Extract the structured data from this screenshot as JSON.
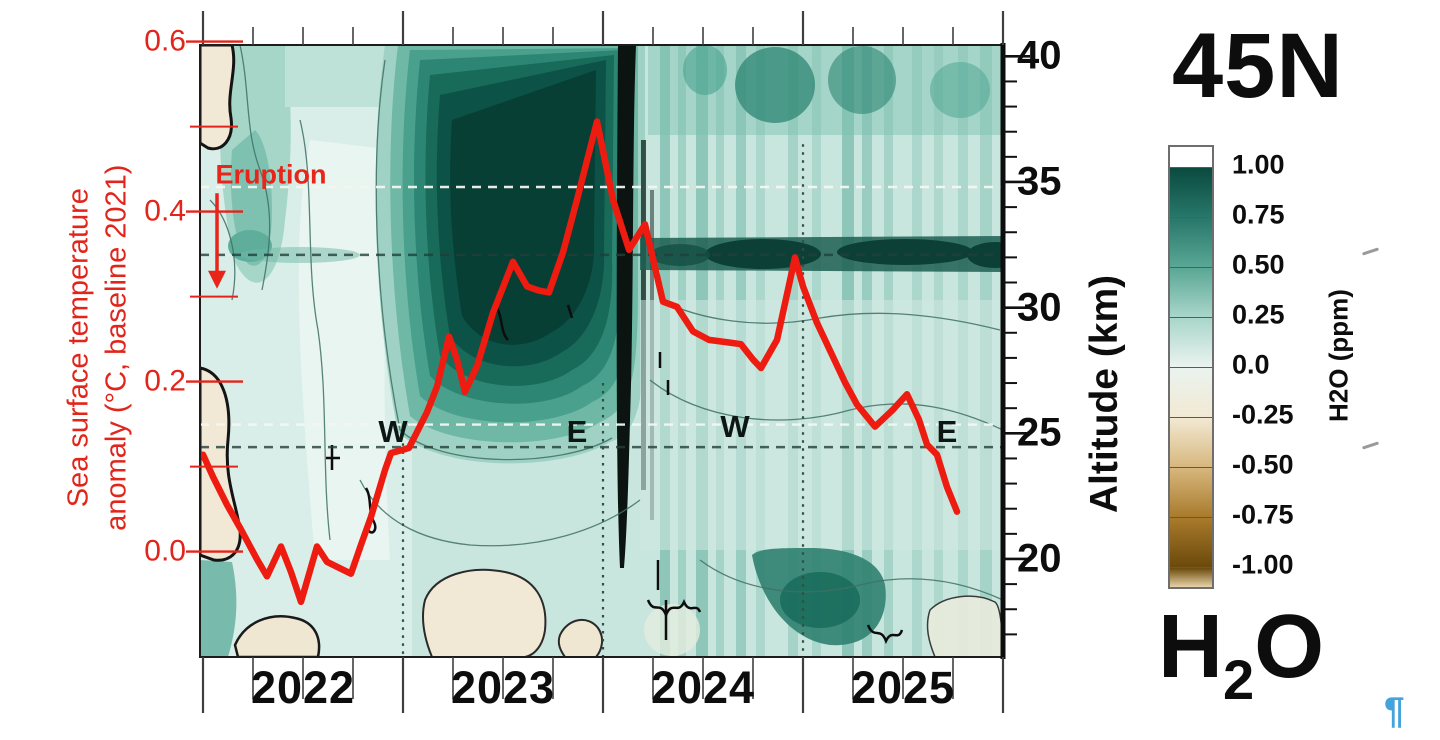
{
  "panel_title": "45N",
  "species_label": {
    "base": "H",
    "subscript": "2",
    "tail": "O"
  },
  "pilcrow": "¶",
  "left_axis": {
    "title_line1": "Sea surface temperature",
    "title_line2": "anomaly (°C, baseline 2021)",
    "tick_labels": [
      "0.6",
      "0.4",
      "0.2",
      "0.0"
    ],
    "color": "#e1251b"
  },
  "right_axis": {
    "title": "Altitude (km)",
    "tick_labels": [
      "40",
      "35",
      "30",
      "25",
      "20"
    ]
  },
  "bottom_axis": {
    "tick_labels": [
      "2022",
      "2023",
      "2024",
      "2025"
    ]
  },
  "colorbar": {
    "title": "H2O (ppm)",
    "tick_labels": [
      "1.00",
      "0.75",
      "0.50",
      "0.25",
      "0.0",
      "-0.25",
      "-0.50",
      "-0.75",
      "-1.00"
    ]
  },
  "chart_data": {
    "type": "heatmap",
    "title": "45N",
    "description": "Contour/heatmap of stratospheric water vapor anomaly (H2O, ppm) at 45N versus time (2022-2025) and altitude (km), teal = positive, brown = negative, with Hunga Tonga eruption marked in early 2022 and QBO wind phase letters W/E. Overlaid red line: global sea surface temperature anomaly (°C, baseline 2021) read on the left axis.",
    "x_range_years": [
      2021.985,
      2026.0
    ],
    "altitude_range_km": [
      16.1,
      40.45
    ],
    "sst_axis_range_c": [
      -0.124,
      0.596
    ],
    "grid": "dashed altitude guides on, dotted year boundaries on",
    "colorbar": {
      "label": "H2O (ppm)",
      "levels": [
        1.0,
        0.75,
        0.5,
        0.25,
        0.0,
        -0.25,
        -0.5,
        -0.75,
        -1.0
      ],
      "colors": [
        "#0b4a3f",
        "#27776a",
        "#5aa795",
        "#a9d6ca",
        "#eaf3ef",
        "#f2e9d3",
        "#d7b77e",
        "#a97b2c",
        "#6b4a0b"
      ],
      "under_color": "#e7d3a8",
      "over_color": "#ffffff"
    },
    "qbo_phase_labels": [
      {
        "t": 2022.95,
        "alt_km": 25.1,
        "label": "W"
      },
      {
        "t": 2023.87,
        "alt_km": 25.1,
        "label": "E"
      },
      {
        "t": 2024.66,
        "alt_km": 25.3,
        "label": "W"
      },
      {
        "t": 2025.72,
        "alt_km": 25.1,
        "label": "E"
      }
    ],
    "eruption": {
      "label": "Eruption",
      "t": 2022.07,
      "label_t": 2022.34,
      "label_alt_km": 35.3,
      "arrow_top_alt_km": 34.55,
      "arrow_tip_alt_km": 30.75,
      "color": "#e8251a"
    },
    "gridlines": {
      "horizontal_white_alt_km": [
        34.8,
        25.35
      ],
      "horizontal_dark_alt_km": [
        32.1,
        24.45
      ],
      "vertical_dotted": [
        {
          "t": 2023.0,
          "alt_top_km": 24.6
        },
        {
          "t": 2024.0,
          "alt_top_km": 27.0
        },
        {
          "t": 2025.0,
          "alt_top_km": 36.5
        }
      ]
    },
    "sst_series": {
      "name": "Sea surface temperature anomaly",
      "units": "°C (baseline 2021)",
      "color": "#ee1b10",
      "x_years": [
        2022.0,
        2022.05,
        2022.12,
        2022.19,
        2022.27,
        2022.32,
        2022.39,
        2022.44,
        2022.49,
        2022.57,
        2022.62,
        2022.68,
        2022.74,
        2022.79,
        2022.84,
        2022.91,
        2022.94,
        2022.99,
        2023.03,
        2023.12,
        2023.17,
        2023.23,
        2023.27,
        2023.31,
        2023.37,
        2023.45,
        2023.55,
        2023.62,
        2023.68,
        2023.73,
        2023.8,
        2023.87,
        2023.97,
        2024.05,
        2024.13,
        2024.21,
        2024.3,
        2024.37,
        2024.45,
        2024.53,
        2024.63,
        2024.69,
        2024.75,
        2024.79,
        2024.87,
        2024.96,
        2025.0,
        2025.07,
        2025.15,
        2025.21,
        2025.27,
        2025.36,
        2025.45,
        2025.52,
        2025.58,
        2025.62,
        2025.67,
        2025.72,
        2025.77
      ],
      "values": [
        0.114,
        0.088,
        0.055,
        0.026,
        -0.009,
        -0.029,
        0.006,
        -0.024,
        -0.059,
        0.006,
        -0.012,
        -0.019,
        -0.026,
        0.008,
        0.041,
        0.096,
        0.116,
        0.119,
        0.122,
        0.164,
        0.194,
        0.253,
        0.226,
        0.188,
        0.218,
        0.281,
        0.341,
        0.312,
        0.307,
        0.305,
        0.352,
        0.414,
        0.506,
        0.414,
        0.355,
        0.385,
        0.294,
        0.288,
        0.259,
        0.249,
        0.246,
        0.244,
        0.226,
        0.216,
        0.249,
        0.346,
        0.312,
        0.269,
        0.229,
        0.199,
        0.173,
        0.147,
        0.167,
        0.185,
        0.155,
        0.126,
        0.114,
        0.076,
        0.047
      ]
    }
  }
}
